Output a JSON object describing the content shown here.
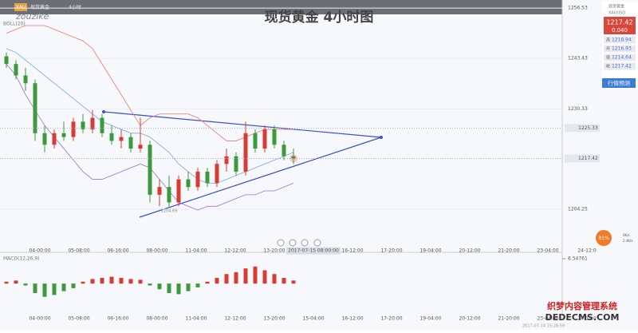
{
  "header": {
    "symbol": "XAU",
    "name": "现货黄金",
    "interval": "4小时",
    "brand": "zouzike"
  },
  "panel": {
    "name": "现货黄金",
    "code": "XAUUSD",
    "price": "1217.42",
    "change": "0.040",
    "stats": [
      {
        "label": "高",
        "value": "1218.94"
      },
      {
        "label": "开",
        "value": "1216.93"
      },
      {
        "label": "低",
        "value": "1214.64"
      },
      {
        "label": "收",
        "value": "1217.42"
      }
    ],
    "button": "行情预测"
  },
  "status": {
    "badge": "81%",
    "up": "0K/s",
    "down": "2.4K/s",
    "time": "2017-07-14 15:28:59"
  },
  "watermark": {
    "line1": "织梦内容管理系统",
    "line2": "DEDECMS.COM"
  },
  "chart_data": [
    {
      "type": "candlestick",
      "title": "现货黄金 4小时图",
      "indicator": "BOLL(20)",
      "open": [
        1244,
        1242,
        1239,
        1237,
        1224,
        1221,
        1224,
        1223,
        1227,
        1225,
        1228,
        1224,
        1222,
        1223,
        1220,
        1221,
        1208,
        1210,
        1206,
        1212,
        1210,
        1214,
        1211,
        1216,
        1218,
        1214,
        1224,
        1220,
        1225,
        1221,
        1218
      ],
      "high": [
        1245,
        1243,
        1241,
        1238,
        1226,
        1225,
        1227,
        1228,
        1229,
        1230,
        1229,
        1226,
        1225,
        1224,
        1228,
        1222,
        1212,
        1213,
        1213,
        1214,
        1215,
        1215,
        1217,
        1220,
        1219,
        1227,
        1225,
        1226,
        1226,
        1222,
        1220
      ],
      "low": [
        1241,
        1238,
        1235,
        1222,
        1219,
        1220,
        1222,
        1222,
        1224,
        1224,
        1223,
        1221,
        1220,
        1219,
        1219,
        1206,
        1205,
        1204.69,
        1205,
        1209,
        1209,
        1210,
        1210,
        1214,
        1213,
        1213,
        1219,
        1219,
        1220,
        1217,
        1216
      ],
      "close": [
        1242,
        1239,
        1237,
        1224,
        1221,
        1224,
        1223,
        1227,
        1225,
        1228,
        1224,
        1222,
        1223,
        1220,
        1221,
        1208,
        1210,
        1206,
        1212,
        1210,
        1214,
        1211,
        1216,
        1218,
        1214,
        1224,
        1220,
        1225,
        1221,
        1218,
        1217.42
      ],
      "up_color": "#d83a34",
      "down_color": "#3c9a3c",
      "bands": {
        "upper": [
          1250,
          1251,
          1252,
          1252,
          1252,
          1251,
          1250,
          1249,
          1248,
          1246,
          1242,
          1238,
          1234,
          1230,
          1226,
          1228,
          1229,
          1229,
          1229,
          1229,
          1228,
          1226,
          1224,
          1222,
          1222,
          1223,
          1224,
          1225,
          1225,
          1225,
          1225
        ],
        "mid": [
          1246,
          1245,
          1243,
          1241,
          1239,
          1237,
          1235,
          1233,
          1231,
          1229,
          1227,
          1226,
          1225,
          1224,
          1224,
          1223,
          1221,
          1219,
          1216,
          1214,
          1212,
          1211,
          1211,
          1212,
          1213,
          1214,
          1215,
          1216,
          1217,
          1218,
          1219
        ],
        "lower": [
          1242,
          1239,
          1234,
          1230,
          1226,
          1223,
          1220,
          1217,
          1214,
          1212,
          1212,
          1213,
          1214,
          1215,
          1216,
          1215,
          1212,
          1209,
          1206,
          1205,
          1204,
          1205,
          1205,
          1206,
          1207,
          1208,
          1208,
          1209,
          1209,
          1210,
          1211
        ],
        "colors": {
          "upper": "#e27c6c",
          "mid": "#72a9dc",
          "lower": "#9b72d2"
        }
      },
      "low_label": {
        "index": 17,
        "value": 1204.69
      },
      "price_labels": [
        1225.33,
        1217.42
      ],
      "ylim": [
        1195.3,
        1257.6
      ],
      "yticks": [
        1256.53,
        1243.43,
        1230.33,
        1204.25
      ],
      "xlabels": [
        "04-00:00",
        "05-08:00",
        "06-16:00",
        "08-00:00",
        "11-04:00",
        "12-12:00",
        "13-20:00",
        "2017-07-15 08:00:00",
        "16-12:00",
        "17-20:00",
        "19-04:00",
        "20-12:00",
        "21-20:00",
        "23-04:00",
        "24-12:0"
      ]
    },
    {
      "type": "bar",
      "title": "MACD(12,26,9)",
      "values": [
        0.5,
        0.8,
        -0.5,
        -2.5,
        -3.5,
        -3.0,
        -2.0,
        -1.2,
        0.5,
        1.2,
        1.5,
        1.8,
        1.5,
        1.2,
        1.0,
        -0.5,
        -1.5,
        -2.5,
        -2.8,
        -2.0,
        -1.0,
        0.5,
        1.5,
        2.5,
        3.0,
        4.0,
        4.5,
        3.5,
        2.5,
        1.5,
        0.8
      ],
      "pos_color": "#d83a34",
      "neg_color": "#3c9a3c",
      "ylim": [
        -8.4,
        6.54761
      ],
      "yticks": [
        6.54761
      ],
      "xlabels": [
        "04-00:00",
        "05-08:00",
        "06-16:00",
        "08-00:00",
        "11-04:00",
        "12-12:00",
        "13-20:00",
        "15-04:00",
        "16-12:00",
        "17-20:00",
        "19-04:00",
        "20-12:00",
        "21-20:00",
        "23-04:00",
        "24-12:0"
      ]
    }
  ]
}
